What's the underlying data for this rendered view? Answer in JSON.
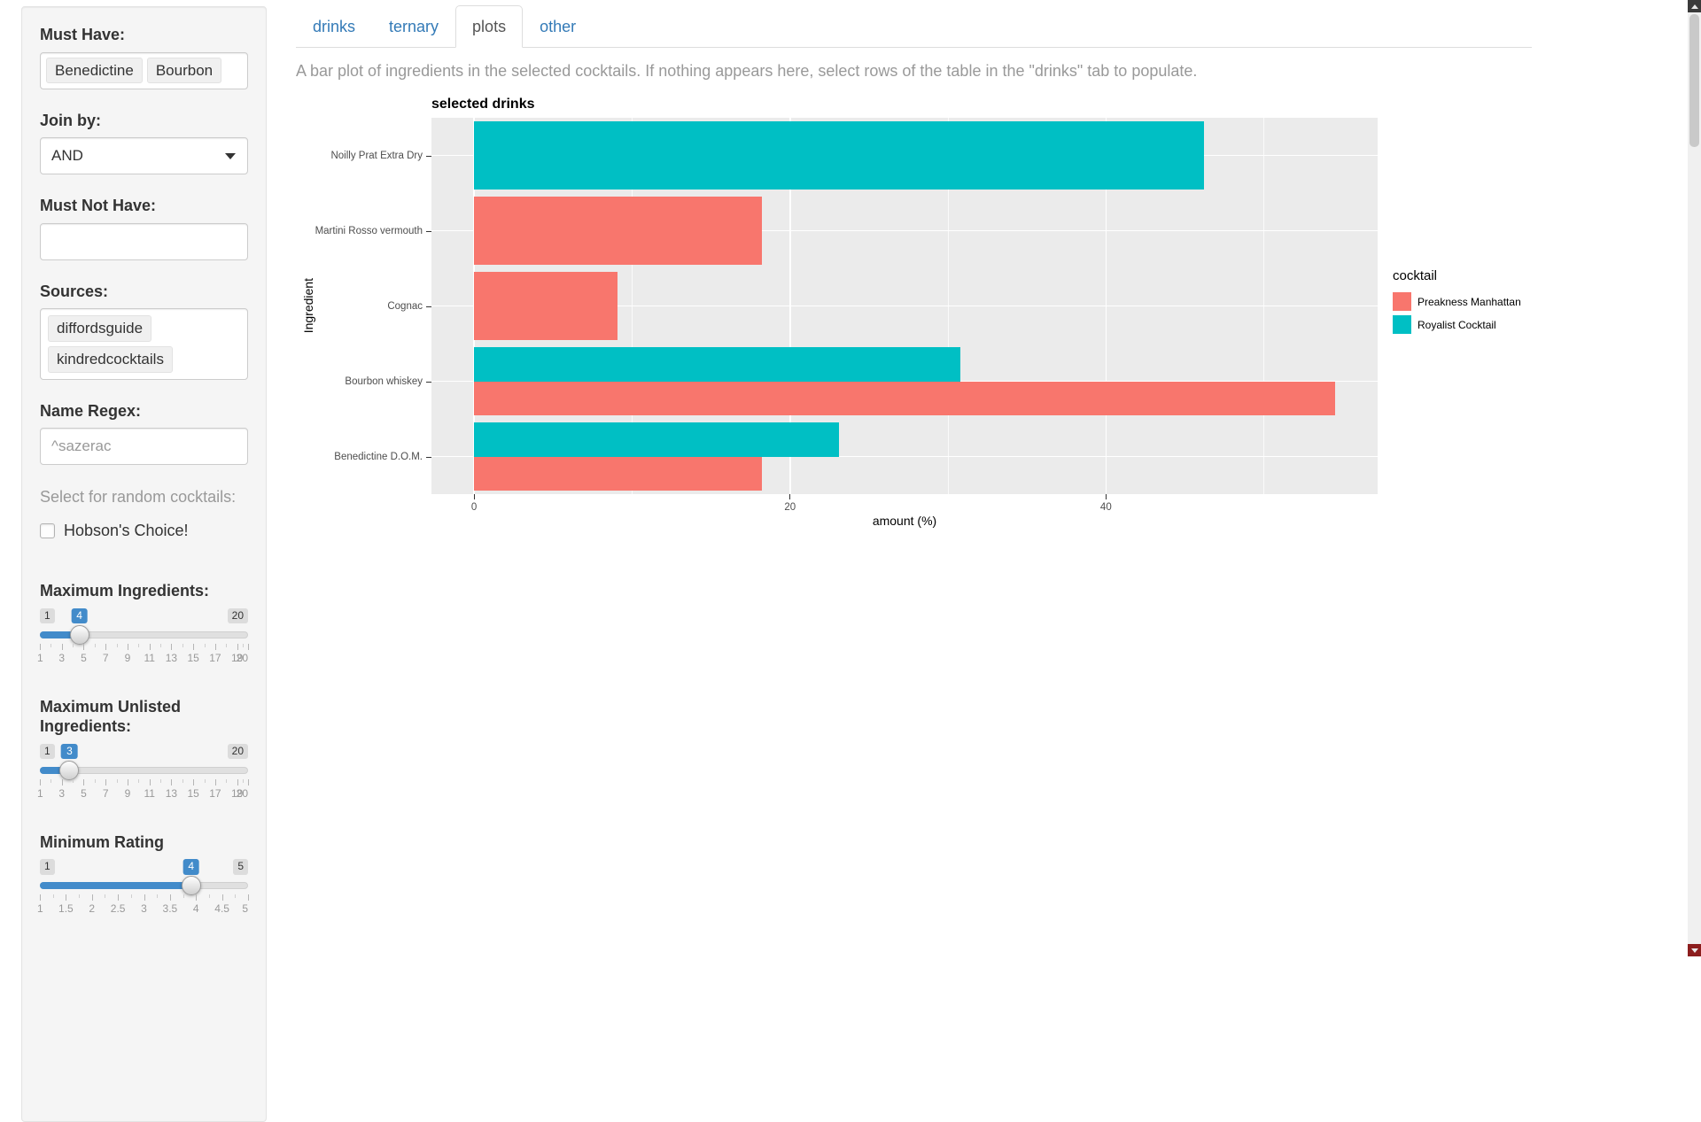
{
  "sidebar": {
    "must_have": {
      "label": "Must Have:",
      "tags": [
        "Benedictine",
        "Bourbon"
      ]
    },
    "join_by": {
      "label": "Join by:",
      "value": "AND"
    },
    "must_not_have": {
      "label": "Must Not Have:",
      "value": ""
    },
    "sources": {
      "label": "Sources:",
      "tags": [
        "diffordsguide",
        "kindredcocktails"
      ]
    },
    "name_regex": {
      "label": "Name Regex:",
      "placeholder": "^sazerac"
    },
    "random_hint": "Select for random cocktails:",
    "hobsons_choice": {
      "label": "Hobson's Choice!",
      "checked": false
    },
    "sliders": {
      "max_ingredients": {
        "label": "Maximum Ingredients:",
        "min": 1,
        "max": 20,
        "value": 4,
        "ticks": [
          1,
          3,
          5,
          7,
          9,
          11,
          13,
          15,
          17,
          19,
          20
        ]
      },
      "max_unlisted": {
        "label": "Maximum Unlisted Ingredients:",
        "min": 1,
        "max": 20,
        "value": 3,
        "ticks": [
          1,
          3,
          5,
          7,
          9,
          11,
          13,
          15,
          17,
          19,
          20
        ]
      },
      "min_rating": {
        "label": "Minimum Rating",
        "min": 1,
        "max": 5,
        "value": 4,
        "ticks": [
          1,
          1.5,
          2,
          2.5,
          3,
          3.5,
          4,
          4.5,
          5
        ]
      }
    }
  },
  "tabs": [
    {
      "label": "drinks",
      "active": false
    },
    {
      "label": "ternary",
      "active": false
    },
    {
      "label": "plots",
      "active": true
    },
    {
      "label": "other",
      "active": false
    }
  ],
  "description": "A bar plot of ingredients in the selected cocktails. If nothing appears here, select rows of the table in the \"drinks\" tab to populate.",
  "chart_data": {
    "type": "bar",
    "orientation": "horizontal",
    "title": "selected drinks",
    "xlabel": "amount (%)",
    "ylabel": "Ingredient",
    "legend_title": "cocktail",
    "legend_position": "right",
    "categories": [
      "Noilly Prat Extra Dry",
      "Martini Rosso vermouth",
      "Cognac",
      "Bourbon whiskey",
      "Benedictine D.O.M."
    ],
    "series": [
      {
        "name": "Preakness Manhattan",
        "color": "#F8766D",
        "values": [
          null,
          18.2,
          9.1,
          54.5,
          18.2
        ]
      },
      {
        "name": "Royalist Cocktail",
        "color": "#00BFC4",
        "values": [
          46.2,
          null,
          null,
          30.8,
          23.1
        ]
      }
    ],
    "x_ticks": [
      0,
      20,
      40
    ],
    "x_minor_ticks": [
      10,
      30,
      50
    ],
    "x_range": [
      -2.7,
      57.2
    ],
    "panel_background": "#EBEBEB",
    "grid": true
  },
  "colors": {
    "accent_blue": "#428bca",
    "link_blue": "#337ab7",
    "bar_red": "#F8766D",
    "bar_teal": "#00BFC4",
    "panel_gray": "#EBEBEB"
  }
}
